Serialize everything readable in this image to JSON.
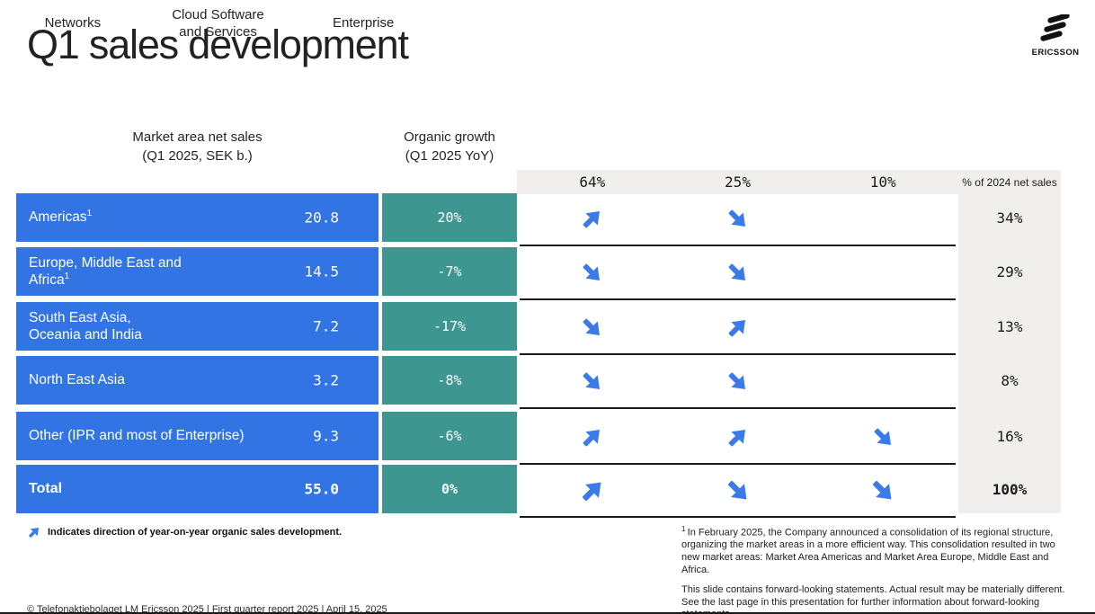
{
  "title": "Q1 sales development",
  "brand": {
    "name": "ERICSSON",
    "icon": "ericsson-three-bars-logo"
  },
  "table": {
    "market_header": [
      "Market area net sales",
      "(Q1 2025, SEK b.)"
    ],
    "growth_header": [
      "Organic growth",
      "(Q1 2025 YoY)"
    ],
    "segments": [
      {
        "label": "Networks",
        "share_of_2024": "64%"
      },
      {
        "label": "Cloud Software and Services",
        "share_of_2024": "25%"
      },
      {
        "label": "Enterprise",
        "share_of_2024": "10%"
      }
    ],
    "share_note": "% of 2024 net sales",
    "rows": [
      {
        "name": "Americas",
        "footnote_mark": "1",
        "net_sales": "20.8",
        "organic_growth": "20%",
        "arrows": {
          "networks": "up",
          "cloud_software_and_services": "down",
          "enterprise": null
        },
        "pct_of_2024_net_sales": "34%",
        "is_total": false
      },
      {
        "name": "Europe, Middle East and\nAfrica",
        "footnote_mark": "1",
        "net_sales": "14.5",
        "organic_growth": "-7%",
        "arrows": {
          "networks": "down",
          "cloud_software_and_services": "down",
          "enterprise": null
        },
        "pct_of_2024_net_sales": "29%",
        "is_total": false
      },
      {
        "name": "South East Asia,\nOceania and India",
        "footnote_mark": null,
        "net_sales": "7.2",
        "organic_growth": "-17%",
        "arrows": {
          "networks": "down",
          "cloud_software_and_services": "up",
          "enterprise": null
        },
        "pct_of_2024_net_sales": "13%",
        "is_total": false
      },
      {
        "name": "North East Asia",
        "footnote_mark": null,
        "net_sales": "3.2",
        "organic_growth": "-8%",
        "arrows": {
          "networks": "down",
          "cloud_software_and_services": "down",
          "enterprise": null
        },
        "pct_of_2024_net_sales": "8%",
        "is_total": false
      },
      {
        "name": "Other (IPR and most of Enterprise)",
        "footnote_mark": null,
        "net_sales": "9.3",
        "organic_growth": "-6%",
        "arrows": {
          "networks": "up",
          "cloud_software_and_services": "up",
          "enterprise": "down"
        },
        "pct_of_2024_net_sales": "16%",
        "is_total": false
      },
      {
        "name": "Total",
        "footnote_mark": null,
        "net_sales": "55.0",
        "organic_growth": "0%",
        "arrows": {
          "networks": "up",
          "cloud_software_and_services": "down",
          "enterprise": "down"
        },
        "pct_of_2024_net_sales": "100%",
        "is_total": true
      }
    ]
  },
  "legend": {
    "icon": "up-right-arrow",
    "text": "Indicates direction of year-on-year organic sales development."
  },
  "footnotes": [
    {
      "mark": "1",
      "text": "In February 2025, the Company announced a consolidation of its regional structure, organizing the market areas in a more efficient way. This consolidation resulted in two new market areas: Market Area Americas and Market Area Europe, Middle East and Africa."
    },
    {
      "mark": null,
      "text": "This slide contains forward-looking statements. Actual result may be materially different. See the last page in this presentation for further information about forward-looking statements."
    }
  ],
  "footer": "© Telefonaktiebolaget LM Ericsson 2025  | First quarter report 2025 | April 15, 2025",
  "colors": {
    "row_blue": "#3274E4",
    "growth_teal": "#3D9790",
    "arrow_blue": "#3B7BE9",
    "band_gray": "#F0EFEE",
    "rule_black": "#1A1A1A"
  }
}
